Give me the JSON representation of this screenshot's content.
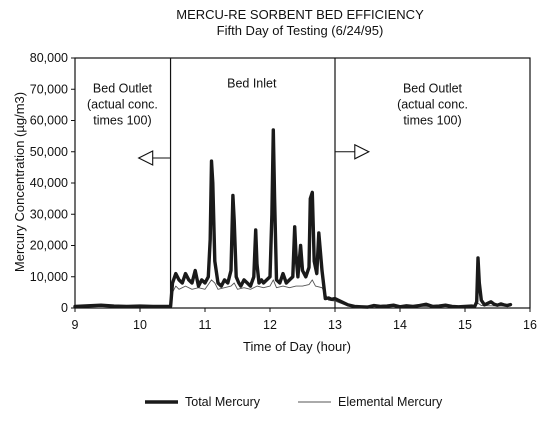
{
  "chart_data": {
    "type": "line",
    "title": "MERCU-RE SORBENT BED EFFICIENCY",
    "subtitle": "Fifth Day of Testing (6/24/95)",
    "xlabel": "Time of Day (hour)",
    "ylabel": "Mercury Concentration (µg/m3)",
    "xlim": [
      9,
      16
    ],
    "ylim": [
      0,
      80000
    ],
    "x_ticks": [
      9,
      10,
      11,
      12,
      13,
      14,
      15,
      16
    ],
    "x_tick_labels": [
      "9",
      "10",
      "11",
      "12",
      "13",
      "14",
      "15",
      "16"
    ],
    "y_ticks": [
      0,
      10000,
      20000,
      30000,
      40000,
      50000,
      60000,
      70000,
      80000
    ],
    "y_tick_labels": [
      "0",
      "10,000",
      "20,000",
      "30,000",
      "40,000",
      "50,000",
      "60,000",
      "70,000",
      "80,000"
    ],
    "grid": false,
    "legend_position": "bottom",
    "regions": [
      {
        "name": "left",
        "x_start": 9,
        "x_end": 10.47
      },
      {
        "name": "middle",
        "x_start": 10.47,
        "x_end": 13.0
      },
      {
        "name": "right",
        "x_start": 13.0,
        "x_end": 16
      }
    ],
    "annotations": [
      {
        "id": "bed-outlet-left",
        "lines": [
          "Bed Outlet",
          "(actual conc.",
          "times 100)"
        ],
        "x": 9.73,
        "y": 69000
      },
      {
        "id": "bed-inlet",
        "lines": [
          "Bed Inlet"
        ],
        "x": 11.72,
        "y": 70500
      },
      {
        "id": "bed-outlet-right",
        "lines": [
          "Bed Outlet",
          "(actual conc.",
          "times 100)"
        ],
        "x": 14.5,
        "y": 69000
      }
    ],
    "arrows": [
      {
        "id": "arrow-left",
        "direction": "left",
        "x_from": 10.47,
        "x_to": 9.98,
        "y": 48000
      },
      {
        "id": "arrow-right",
        "direction": "right",
        "x_from": 13.0,
        "x_to": 13.52,
        "y": 50000
      }
    ],
    "series": [
      {
        "name": "Total Mercury",
        "style": "thick",
        "color": "#1a1a1a",
        "x": [
          9.0,
          9.2,
          9.4,
          9.6,
          9.8,
          10.0,
          10.2,
          10.4,
          10.47,
          10.5,
          10.55,
          10.6,
          10.65,
          10.7,
          10.75,
          10.8,
          10.85,
          10.9,
          10.95,
          11.0,
          11.05,
          11.08,
          11.1,
          11.12,
          11.15,
          11.2,
          11.25,
          11.3,
          11.35,
          11.4,
          11.43,
          11.45,
          11.48,
          11.52,
          11.55,
          11.6,
          11.65,
          11.7,
          11.75,
          11.78,
          11.8,
          11.83,
          11.87,
          11.9,
          11.95,
          12.0,
          12.03,
          12.05,
          12.07,
          12.1,
          12.15,
          12.2,
          12.25,
          12.3,
          12.35,
          12.38,
          12.4,
          12.43,
          12.47,
          12.5,
          12.55,
          12.6,
          12.62,
          12.65,
          12.68,
          12.72,
          12.75,
          12.8,
          12.85,
          12.9,
          12.95,
          13.0,
          13.1,
          13.2,
          13.3,
          13.4,
          13.5,
          13.6,
          13.7,
          13.8,
          13.9,
          14.0,
          14.1,
          14.2,
          14.3,
          14.4,
          14.5,
          14.6,
          14.7,
          14.8,
          14.9,
          15.0,
          15.1,
          15.15,
          15.18,
          15.2,
          15.22,
          15.25,
          15.3,
          15.35,
          15.4,
          15.45,
          15.5,
          15.55,
          15.6,
          15.65,
          15.7
        ],
        "y": [
          500,
          700,
          900,
          600,
          500,
          600,
          500,
          500,
          500,
          8000,
          11000,
          9000,
          8000,
          11000,
          9000,
          8000,
          12000,
          7000,
          9000,
          8000,
          10000,
          22000,
          47000,
          40000,
          15000,
          8000,
          7000,
          9000,
          8000,
          12000,
          36000,
          28000,
          10000,
          8000,
          7000,
          9000,
          8000,
          7000,
          10000,
          25000,
          14000,
          8000,
          9000,
          8000,
          9000,
          10000,
          30000,
          57000,
          35000,
          9000,
          8000,
          11000,
          8000,
          9000,
          10000,
          26000,
          17000,
          10000,
          20000,
          12000,
          10000,
          13000,
          35000,
          37000,
          15000,
          11000,
          24000,
          12000,
          3000,
          3200,
          2800,
          3000,
          2000,
          1000,
          500,
          400,
          300,
          800,
          500,
          600,
          900,
          400,
          700,
          500,
          800,
          1200,
          500,
          600,
          900,
          500,
          400,
          500,
          600,
          500,
          2000,
          16000,
          8000,
          2500,
          1000,
          1500,
          2000,
          1200,
          900,
          1300,
          1000,
          800,
          1100
        ]
      },
      {
        "name": "Elemental Mercury",
        "style": "thin",
        "color": "#555555",
        "x": [
          9.0,
          9.2,
          9.4,
          9.6,
          9.8,
          10.0,
          10.2,
          10.4,
          10.47,
          10.5,
          10.55,
          10.6,
          10.7,
          10.8,
          10.9,
          11.0,
          11.1,
          11.15,
          11.2,
          11.3,
          11.4,
          11.45,
          11.5,
          11.6,
          11.7,
          11.8,
          11.9,
          12.0,
          12.05,
          12.1,
          12.2,
          12.3,
          12.4,
          12.5,
          12.6,
          12.65,
          12.7,
          12.8,
          12.9,
          13.0,
          13.2,
          13.4,
          13.6,
          13.8,
          14.0,
          14.2,
          14.4,
          14.6,
          14.8,
          15.0,
          15.15,
          15.2,
          15.25,
          15.4,
          15.6,
          15.7
        ],
        "y": [
          300,
          400,
          500,
          350,
          300,
          350,
          300,
          300,
          300,
          5000,
          7000,
          6000,
          7000,
          6000,
          6500,
          6000,
          9000,
          8000,
          6000,
          6500,
          7000,
          8000,
          6000,
          6500,
          6000,
          7000,
          6500,
          7000,
          9000,
          6500,
          7000,
          6500,
          7000,
          7000,
          7500,
          9000,
          7000,
          6500,
          2500,
          2200,
          700,
          300,
          500,
          400,
          500,
          600,
          500,
          400,
          500,
          400,
          900,
          1500,
          800,
          700,
          600,
          700
        ]
      }
    ]
  }
}
